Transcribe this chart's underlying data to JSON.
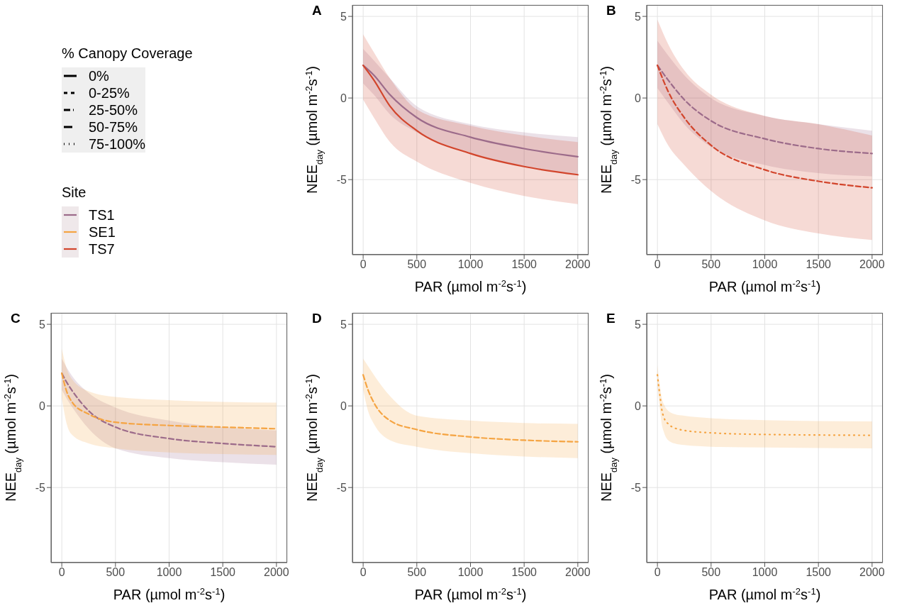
{
  "chart_data": [
    {
      "type": "other",
      "title": "% Canopy Coverage",
      "annotations": [
        "0%",
        "0-25%",
        "25-50%",
        "50-75%",
        "75-100%"
      ]
    },
    {
      "type": "other",
      "title": "Site",
      "annotations": [
        "TS1",
        "SE1",
        "TS7"
      ],
      "colors": [
        "#9c6b8a",
        "#f5a442",
        "#d2452c"
      ]
    },
    {
      "type": "line",
      "title": "A",
      "xlabel": "PAR (µmol m$^{-2}$s$^{-1}$)",
      "ylabel": "NEE$_{day}$ (µmol m$^{-2}$s$^{-1}$)",
      "xlim": [
        -100,
        2100
      ],
      "ylim": [
        -9.6,
        5.7
      ],
      "xticks": [
        0,
        500,
        1000,
        1500,
        2000
      ],
      "yticks": [
        -5,
        0,
        5
      ],
      "grid": true,
      "line_style": "solid",
      "series": [
        {
          "color": "#9c6b8a",
          "x": [
            0,
            100,
            250,
            500,
            1000,
            1500,
            2000
          ],
          "values": [
            2.0,
            1.4,
            0.2,
            -1.2,
            -2.4,
            -3.1,
            -3.6
          ],
          "lower": [
            0.9,
            0.2,
            -1.0,
            -2.1,
            -3.4,
            -4.2,
            -4.7
          ],
          "upper": [
            3.0,
            2.3,
            1.2,
            -0.5,
            -1.6,
            -2.1,
            -2.4
          ]
        },
        {
          "color": "#d2452c",
          "x": [
            0,
            100,
            250,
            500,
            1000,
            1500,
            2000
          ],
          "values": [
            2.0,
            1.1,
            -0.5,
            -2.0,
            -3.4,
            -4.2,
            -4.7
          ],
          "lower": [
            -0.1,
            -1.2,
            -2.7,
            -3.9,
            -5.2,
            -6.0,
            -6.5
          ],
          "upper": [
            3.9,
            2.8,
            1.2,
            -0.7,
            -1.7,
            -2.3,
            -2.7
          ]
        }
      ]
    },
    {
      "type": "line",
      "title": "B",
      "xlabel": "PAR (µmol m$^{-2}$s$^{-1}$)",
      "ylabel": "NEE$_{day}$ (µmol m$^{-2}$s$^{-1}$)",
      "xlim": [
        -100,
        2100
      ],
      "ylim": [
        -9.6,
        5.7
      ],
      "xticks": [
        0,
        500,
        1000,
        1500,
        2000
      ],
      "yticks": [
        -5,
        0,
        5
      ],
      "grid": true,
      "line_style": "dashed",
      "series": [
        {
          "color": "#9c6b8a",
          "x": [
            0,
            100,
            250,
            500,
            1000,
            1500,
            2000
          ],
          "values": [
            2.0,
            1.1,
            -0.1,
            -1.4,
            -2.5,
            -3.1,
            -3.4
          ],
          "lower": [
            0.6,
            -0.3,
            -1.6,
            -3.0,
            -4.1,
            -4.6,
            -4.8
          ],
          "upper": [
            3.5,
            2.6,
            1.4,
            0.0,
            -1.1,
            -1.6,
            -2.0
          ]
        },
        {
          "color": "#d2452c",
          "x": [
            0,
            100,
            250,
            500,
            1000,
            1500,
            2000
          ],
          "values": [
            2.0,
            0.4,
            -1.2,
            -2.9,
            -4.4,
            -5.1,
            -5.5
          ],
          "lower": [
            -1.6,
            -2.9,
            -4.1,
            -5.7,
            -7.5,
            -8.3,
            -8.7
          ],
          "upper": [
            4.8,
            3.3,
            1.7,
            0.2,
            -1.1,
            -1.6,
            -2.3
          ]
        }
      ]
    },
    {
      "type": "line",
      "title": "C",
      "xlabel": "PAR (µmol m$^{-2}$s$^{-1}$)",
      "ylabel": "NEE$_{day}$ (µmol m$^{-2}$s$^{-1}$)",
      "xlim": [
        -100,
        2100
      ],
      "ylim": [
        -9.6,
        5.7
      ],
      "xticks": [
        0,
        500,
        1000,
        1500,
        2000
      ],
      "yticks": [
        -5,
        0,
        5
      ],
      "grid": true,
      "line_style": "dashed",
      "series": [
        {
          "color": "#9c6b8a",
          "x": [
            0,
            50,
            100,
            250,
            500,
            1000,
            1500,
            2000
          ],
          "values": [
            2.0,
            1.4,
            0.9,
            -0.3,
            -1.3,
            -2.0,
            -2.3,
            -2.5
          ],
          "lower": [
            1.0,
            0.4,
            -0.1,
            -1.4,
            -2.6,
            -3.2,
            -3.45,
            -3.6
          ],
          "upper": [
            2.9,
            2.3,
            1.8,
            0.8,
            -0.1,
            -0.9,
            -1.3,
            -1.5
          ]
        },
        {
          "color": "#f5a442",
          "x": [
            0,
            50,
            100,
            250,
            500,
            1000,
            1500,
            2000
          ],
          "values": [
            2.0,
            0.8,
            0.2,
            -0.5,
            -1.0,
            -1.2,
            -1.3,
            -1.4
          ],
          "lower": [
            0.5,
            -1.2,
            -1.8,
            -2.3,
            -2.6,
            -2.85,
            -2.95,
            -3.0
          ],
          "upper": [
            3.5,
            2.2,
            1.6,
            0.9,
            0.55,
            0.35,
            0.25,
            0.2
          ]
        }
      ]
    },
    {
      "type": "line",
      "title": "D",
      "xlabel": "PAR (µmol m$^{-2}$s$^{-1}$)",
      "ylabel": "NEE$_{day}$ (µmol m$^{-2}$s$^{-1}$)",
      "xlim": [
        -100,
        2100
      ],
      "ylim": [
        -9.6,
        5.7
      ],
      "xticks": [
        0,
        500,
        1000,
        1500,
        2000
      ],
      "yticks": [
        -5,
        0,
        5
      ],
      "grid": true,
      "line_style": "dashed",
      "series": [
        {
          "color": "#f5a442",
          "x": [
            0,
            50,
            100,
            250,
            500,
            1000,
            1500,
            2000
          ],
          "values": [
            1.9,
            0.9,
            0.2,
            -0.9,
            -1.45,
            -1.9,
            -2.1,
            -2.2
          ],
          "lower": [
            1.0,
            -0.4,
            -1.1,
            -2.1,
            -2.5,
            -2.9,
            -3.1,
            -3.2
          ],
          "upper": [
            2.9,
            2.4,
            1.9,
            0.6,
            -0.6,
            -0.9,
            -1.05,
            -1.1
          ]
        }
      ]
    },
    {
      "type": "line",
      "title": "E",
      "xlabel": "PAR (µmol m$^{-2}$s$^{-1}$)",
      "ylabel": "NEE$_{day}$ (µmol m$^{-2}$s$^{-1}$)",
      "xlim": [
        -100,
        2100
      ],
      "ylim": [
        -9.6,
        5.7
      ],
      "xticks": [
        0,
        500,
        1000,
        1500,
        2000
      ],
      "yticks": [
        -5,
        0,
        5
      ],
      "grid": true,
      "line_style": "dotted",
      "series": [
        {
          "color": "#f5a442",
          "x": [
            0,
            10,
            20,
            30,
            40,
            60,
            100,
            160,
            250,
            500,
            1000,
            2000
          ],
          "values": [
            1.9,
            1.3,
            0.8,
            0.3,
            -0.2,
            -0.7,
            -1.1,
            -1.35,
            -1.5,
            -1.65,
            -1.75,
            -1.8
          ],
          "lower": [
            1.3,
            0.6,
            0.0,
            -0.6,
            -1.1,
            -1.6,
            -2.1,
            -2.3,
            -2.4,
            -2.5,
            -2.55,
            -2.6
          ],
          "upper": [
            2.5,
            1.9,
            1.4,
            0.9,
            0.5,
            0.1,
            -0.3,
            -0.5,
            -0.6,
            -0.75,
            -0.87,
            -0.95
          ]
        }
      ]
    }
  ]
}
